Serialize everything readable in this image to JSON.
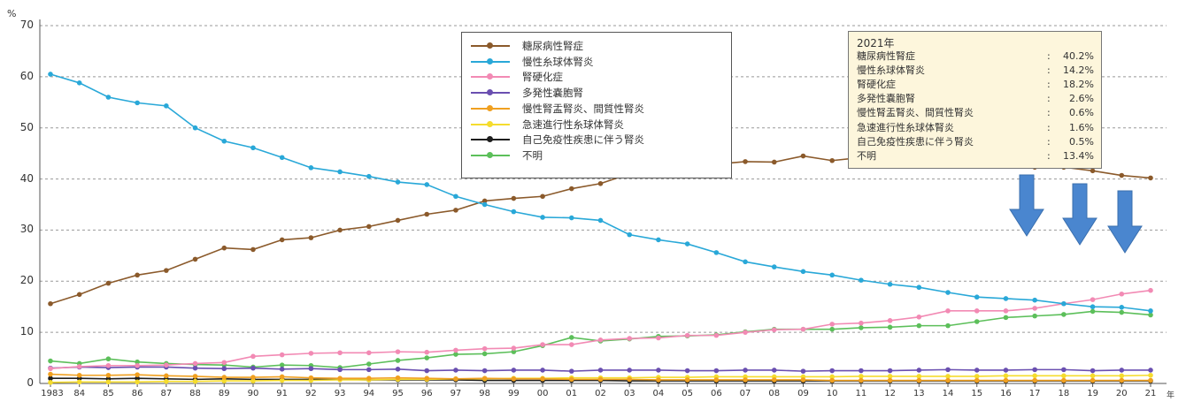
{
  "chart_data": {
    "type": "line",
    "ylabel": "%",
    "xunit": "年",
    "ylim": [
      0,
      70
    ],
    "yticks": [
      0,
      10,
      20,
      30,
      40,
      50,
      60,
      70
    ],
    "grid": "horizontal dashed",
    "legend_position": "top-center",
    "x_labels": [
      "1983",
      "84",
      "85",
      "86",
      "87",
      "88",
      "89",
      "90",
      "91",
      "92",
      "93",
      "94",
      "95",
      "96",
      "97",
      "98",
      "99",
      "00",
      "01",
      "02",
      "03",
      "04",
      "05",
      "06",
      "07",
      "08",
      "09",
      "10",
      "11",
      "12",
      "13",
      "14",
      "15",
      "16",
      "17",
      "18",
      "19",
      "20",
      "21"
    ],
    "series": [
      {
        "name": "糖尿病性腎症",
        "color": "#8b5a2b",
        "values": [
          15.6,
          17.4,
          19.6,
          21.2,
          22.1,
          24.3,
          26.5,
          26.2,
          28.1,
          28.5,
          30.0,
          30.7,
          31.9,
          33.1,
          33.9,
          35.7,
          36.2,
          36.6,
          38.1,
          39.1,
          41.0,
          41.3,
          42.0,
          42.9,
          43.4,
          43.3,
          44.5,
          43.6,
          44.2,
          44.1,
          43.8,
          43.5,
          43.7,
          43.2,
          42.3,
          42.3,
          41.6,
          40.7,
          40.2
        ]
      },
      {
        "name": "慢性糸球体腎炎",
        "color": "#29a8d8",
        "values": [
          60.5,
          58.8,
          56.0,
          54.9,
          54.3,
          50.0,
          47.4,
          46.1,
          44.2,
          42.2,
          41.4,
          40.5,
          39.4,
          38.9,
          36.6,
          35.0,
          33.6,
          32.5,
          32.4,
          31.9,
          29.1,
          28.1,
          27.3,
          25.6,
          23.8,
          22.8,
          21.9,
          21.2,
          20.2,
          19.4,
          18.8,
          17.8,
          16.9,
          16.6,
          16.3,
          15.6,
          15.0,
          14.9,
          14.2
        ]
      },
      {
        "name": "腎硬化症",
        "color": "#f28ab4",
        "values": [
          2.9,
          3.3,
          3.5,
          3.5,
          3.6,
          3.9,
          4.1,
          5.3,
          5.6,
          5.9,
          6.0,
          6.0,
          6.2,
          6.1,
          6.5,
          6.8,
          6.9,
          7.6,
          7.6,
          8.5,
          8.8,
          8.9,
          9.4,
          9.4,
          10.0,
          10.5,
          10.6,
          11.6,
          11.8,
          12.3,
          13.0,
          14.2,
          14.2,
          14.2,
          14.7,
          15.6,
          16.4,
          17.5,
          18.2
        ]
      },
      {
        "name": "多発性嚢胞腎",
        "color": "#6a4fb0",
        "values": [
          3.0,
          3.2,
          3.1,
          3.2,
          3.2,
          3.0,
          2.9,
          3.0,
          2.8,
          2.9,
          2.7,
          2.7,
          2.8,
          2.5,
          2.6,
          2.5,
          2.6,
          2.6,
          2.4,
          2.6,
          2.6,
          2.6,
          2.5,
          2.5,
          2.6,
          2.6,
          2.4,
          2.5,
          2.5,
          2.5,
          2.6,
          2.7,
          2.6,
          2.6,
          2.7,
          2.7,
          2.5,
          2.6,
          2.6
        ]
      },
      {
        "name": "慢性腎盂腎炎、間質性腎炎",
        "color": "#f0a020",
        "values": [
          1.8,
          1.6,
          1.6,
          1.7,
          1.5,
          1.4,
          1.2,
          1.2,
          1.3,
          1.1,
          1.0,
          1.0,
          1.1,
          1.0,
          0.9,
          1.0,
          0.9,
          0.9,
          0.8,
          0.8,
          0.8,
          0.7,
          0.7,
          0.7,
          0.7,
          0.7,
          0.7,
          0.6,
          0.6,
          0.6,
          0.6,
          0.6,
          0.6,
          0.6,
          0.6,
          0.6,
          0.6,
          0.6,
          0.6
        ]
      },
      {
        "name": "急速進行性糸球体腎炎",
        "color": "#f5dc2e",
        "values": [
          0.2,
          0.3,
          0.3,
          0.3,
          0.4,
          0.4,
          0.5,
          0.5,
          0.6,
          0.6,
          0.7,
          0.7,
          0.8,
          0.8,
          0.9,
          0.9,
          1.0,
          1.0,
          1.1,
          1.1,
          1.1,
          1.2,
          1.2,
          1.3,
          1.3,
          1.3,
          1.3,
          1.3,
          1.4,
          1.4,
          1.4,
          1.4,
          1.4,
          1.5,
          1.5,
          1.5,
          1.5,
          1.5,
          1.6
        ]
      },
      {
        "name": "自己免疫性疾患に伴う腎炎",
        "color": "#1e1e1e",
        "values": [
          1.0,
          1.0,
          0.9,
          1.0,
          0.9,
          0.8,
          0.9,
          0.8,
          0.8,
          0.8,
          0.8,
          0.7,
          0.7,
          0.7,
          0.7,
          0.6,
          0.6,
          0.6,
          0.6,
          0.6,
          0.5,
          0.5,
          0.5,
          0.5,
          0.5,
          0.5,
          0.5,
          0.5,
          0.5,
          0.5,
          0.5,
          0.5,
          0.5,
          0.5,
          0.5,
          0.5,
          0.5,
          0.5,
          0.5
        ]
      },
      {
        "name": "不明",
        "color": "#5cbf5a",
        "values": [
          4.4,
          3.9,
          4.8,
          4.2,
          3.9,
          3.7,
          3.6,
          3.2,
          3.6,
          3.5,
          3.1,
          3.8,
          4.5,
          5.0,
          5.7,
          5.8,
          6.2,
          7.4,
          9.0,
          8.3,
          8.7,
          9.2,
          9.3,
          9.5,
          10.1,
          10.6,
          10.6,
          10.6,
          10.9,
          11.0,
          11.3,
          11.3,
          12.1,
          12.9,
          13.2,
          13.5,
          14.1,
          13.9,
          13.4
        ]
      }
    ],
    "summary": {
      "title": "2021年",
      "rows": [
        {
          "name": "糖尿病性腎症",
          "value": "40.2%"
        },
        {
          "name": "慢性糸球体腎炎",
          "value": "14.2%"
        },
        {
          "name": "腎硬化症",
          "value": "18.2%"
        },
        {
          "name": "多発性嚢胞腎",
          "value": "2.6%"
        },
        {
          "name": "慢性腎盂腎炎、間質性腎炎",
          "value": "0.6%"
        },
        {
          "name": "急速進行性糸球体腎炎",
          "value": "1.6%"
        },
        {
          "name": "自己免疫性疾患に伴う腎炎",
          "value": "0.5%"
        },
        {
          "name": "不明",
          "value": "13.4%"
        }
      ]
    },
    "annotations": {
      "arrow_color": "#4a86cf",
      "arrows": [
        "down-arrow at 17",
        "down-arrow at 19",
        "down-arrow at 21"
      ]
    }
  }
}
